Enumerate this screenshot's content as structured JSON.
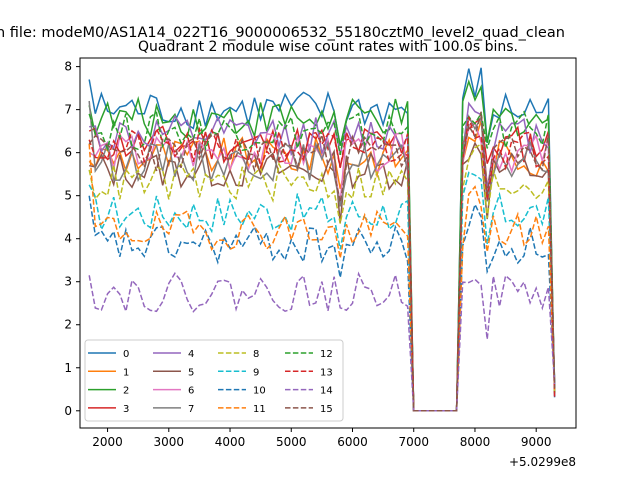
{
  "suptitle": "n file: modeM0/AS1A14_022T16_9000006532_55180cztM0_level2_quad_clean",
  "chart_data": {
    "type": "line",
    "title": "Quadrant 2 module wise count rates with 100.0s bins.",
    "xlabel": "",
    "ylabel": "",
    "x_offset_label": "+5.0299e8",
    "xlim": [
      1550,
      9650
    ],
    "ylim": [
      -0.4,
      8.2
    ],
    "xticks": [
      2000,
      3000,
      4000,
      5000,
      6000,
      7000,
      8000,
      9000
    ],
    "yticks": [
      0,
      1,
      2,
      3,
      4,
      5,
      6,
      7,
      8
    ],
    "grid": false,
    "legend_position": "lower-left",
    "legend_columns": 4,
    "gap_start": 6900,
    "gap_end": 7800,
    "x_start": 1700,
    "x_end": 9300,
    "x_step": 100,
    "series": [
      {
        "name": "0",
        "color": "#1f77b4",
        "dashed": false,
        "level": 7.0,
        "start": 7.7,
        "seed": 1
      },
      {
        "name": "1",
        "color": "#ff7f0e",
        "dashed": false,
        "level": 5.9,
        "start": 5.8,
        "seed": 2
      },
      {
        "name": "2",
        "color": "#2ca02c",
        "dashed": false,
        "level": 6.8,
        "start": 7.1,
        "seed": 3
      },
      {
        "name": "3",
        "color": "#d62728",
        "dashed": false,
        "level": 6.2,
        "start": 6.5,
        "seed": 4
      },
      {
        "name": "4",
        "color": "#9467bd",
        "dashed": false,
        "level": 6.4,
        "start": 6.6,
        "seed": 5
      },
      {
        "name": "5",
        "color": "#8c564b",
        "dashed": false,
        "level": 5.6,
        "start": 5.7,
        "seed": 6
      },
      {
        "name": "6",
        "color": "#e377c2",
        "dashed": false,
        "level": 6.0,
        "start": 6.0,
        "seed": 7
      },
      {
        "name": "7",
        "color": "#7f7f7f",
        "dashed": false,
        "level": 5.8,
        "start": 7.2,
        "seed": 8
      },
      {
        "name": "8",
        "color": "#bcbd22",
        "dashed": true,
        "level": 5.3,
        "start": 5.6,
        "seed": 9
      },
      {
        "name": "9",
        "color": "#17becf",
        "dashed": true,
        "level": 4.6,
        "start": 5.25,
        "seed": 10
      },
      {
        "name": "10",
        "color": "#1f77b4",
        "dashed": true,
        "level": 3.85,
        "start": 5.0,
        "seed": 11
      },
      {
        "name": "11",
        "color": "#ff7f0e",
        "dashed": true,
        "level": 4.2,
        "start": 6.2,
        "seed": 12
      },
      {
        "name": "12",
        "color": "#2ca02c",
        "dashed": true,
        "level": 6.5,
        "start": 6.9,
        "seed": 13
      },
      {
        "name": "13",
        "color": "#d62728",
        "dashed": true,
        "level": 6.1,
        "start": 6.3,
        "seed": 14
      },
      {
        "name": "14",
        "color": "#9467bd",
        "dashed": true,
        "level": 2.75,
        "start": 3.15,
        "seed": 15
      },
      {
        "name": "15",
        "color": "#8c564b",
        "dashed": true,
        "level": 6.0,
        "start": 6.2,
        "seed": 16
      }
    ]
  }
}
